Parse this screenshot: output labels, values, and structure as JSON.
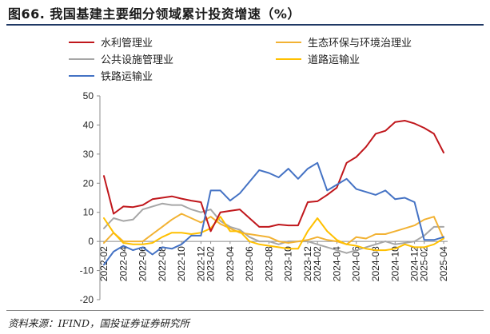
{
  "title": "图66. 我国基建主要细分领域累计投资增速（%）",
  "source": "资料来源：IFIND，国投证券证券研究所",
  "chart_data": {
    "type": "line",
    "title": "图66. 我国基建主要细分领域累计投资增速（%）",
    "xlabel": "",
    "ylabel": "",
    "ylim": [
      -20,
      50
    ],
    "yticks": [
      -20,
      -10,
      0,
      10,
      20,
      30,
      40,
      50
    ],
    "x": [
      "2022-02",
      "2022-03",
      "2022-04",
      "2022-05",
      "2022-06",
      "2022-07",
      "2022-08",
      "2022-09",
      "2022-10",
      "2022-11",
      "2022-12",
      "2023-02",
      "2023-03",
      "2023-04",
      "2023-05",
      "2023-06",
      "2023-07",
      "2023-08",
      "2023-09",
      "2023-10",
      "2023-11",
      "2023-12",
      "2024-02",
      "2024-03",
      "2024-04",
      "2024-05",
      "2024-06",
      "2024-07",
      "2024-08",
      "2024-09",
      "2024-10",
      "2024-11",
      "2024-12",
      "2025-02",
      "2025-03",
      "2025-04"
    ],
    "xtick_labels": [
      "2022-02",
      "2022-04",
      "2022-06",
      "2022-08",
      "2022-10",
      "2022-12",
      "2023-02",
      "2023-04",
      "2023-06",
      "2023-08",
      "2023-10",
      "2023-12",
      "2024-02",
      "2024-04",
      "2024-06",
      "2024-08",
      "2024-10",
      "2024-12",
      "2025-02",
      "2025-04"
    ],
    "legend_position": "top",
    "series": [
      {
        "name": "水利管理业",
        "color": "#c0171c",
        "values": [
          22.5,
          9.5,
          12,
          11.8,
          12.5,
          14.5,
          15,
          15.5,
          14.7,
          14,
          13.5,
          3.5,
          10,
          10.5,
          11,
          8,
          5,
          5,
          5.8,
          5.5,
          5.5,
          13.5,
          13.8,
          16,
          18.5,
          27,
          29,
          32.5,
          37,
          38,
          41,
          41.5,
          40.5,
          39,
          37,
          30.5
        ]
      },
      {
        "name": "生态环保与环境治理业",
        "color": "#f2b233",
        "values": [
          -0.5,
          3,
          0,
          0,
          0,
          2.5,
          5,
          7.5,
          9.5,
          8,
          6.5,
          8.5,
          6,
          4.5,
          3,
          2.5,
          2,
          1.5,
          0,
          -0.5,
          0,
          0.5,
          1.5,
          0.5,
          0,
          -1,
          1.5,
          1,
          2.5,
          2.5,
          3.5,
          4.5,
          5.5,
          7.5,
          8.5,
          1
        ]
      },
      {
        "name": "公共设施管理业",
        "color": "#a6a6a6",
        "values": [
          4.5,
          8,
          7,
          7.5,
          11,
          12,
          13,
          12.5,
          12.5,
          11,
          10,
          11,
          7,
          5,
          4,
          1.5,
          0,
          0,
          -1,
          0,
          0,
          0,
          -1,
          -2,
          -3,
          -4,
          -3,
          -2,
          -1,
          0,
          -1,
          -0.5,
          0,
          2,
          5,
          5
        ]
      },
      {
        "name": "道路运输业",
        "color": "#ffc000",
        "values": [
          8,
          3,
          -0.5,
          -1,
          -1,
          -0.5,
          1.5,
          3,
          3,
          2.5,
          3,
          4.5,
          8.5,
          3.5,
          3.5,
          0,
          -1,
          -1.5,
          -2,
          -2.5,
          -2.5,
          3.5,
          8,
          3.5,
          0.5,
          -1,
          -1.5,
          -2.5,
          -3,
          -3,
          -2.5,
          -1,
          -2,
          -2,
          -1,
          1
        ]
      },
      {
        "name": "铁路运输业",
        "color": "#4472c4",
        "values": [
          -8,
          -3.5,
          -1.5,
          -3,
          -2,
          -4.5,
          -2,
          -2.5,
          -1,
          2,
          2,
          17.5,
          17.5,
          14,
          16.5,
          20.5,
          24.5,
          23.5,
          22,
          25,
          21.5,
          25,
          27,
          17.5,
          19.5,
          21.5,
          18,
          17,
          16,
          17.5,
          14.5,
          15,
          13.5,
          0.5,
          0.5,
          1.5
        ]
      }
    ]
  }
}
